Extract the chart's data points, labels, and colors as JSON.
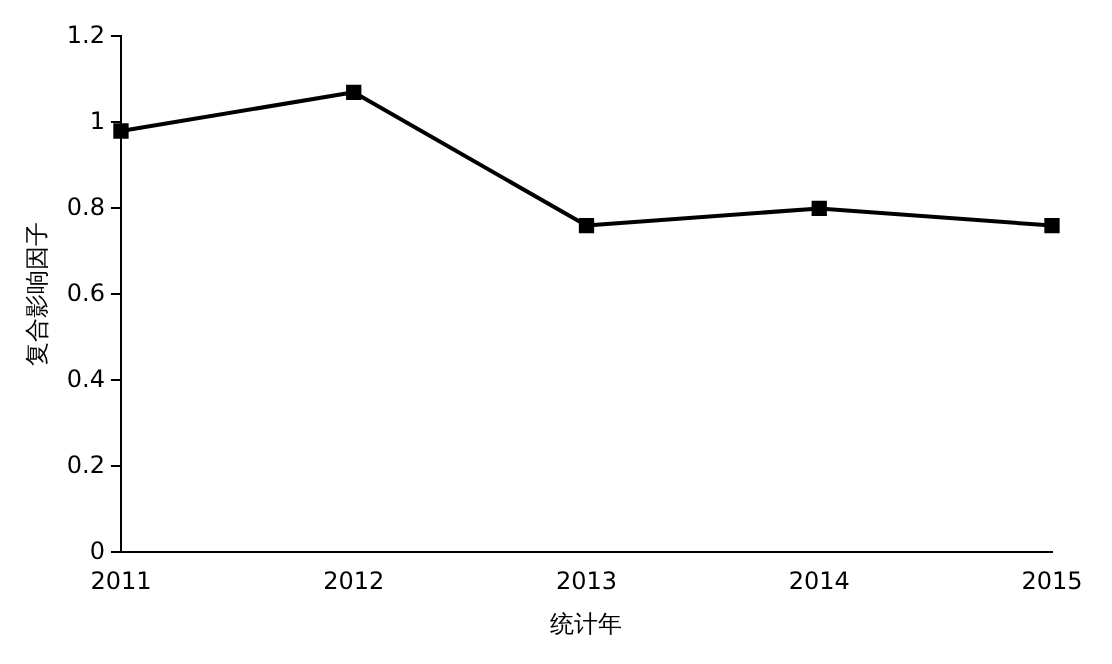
{
  "chart_data": {
    "type": "line",
    "xlabel": "统计年",
    "ylabel": "复合影响因子",
    "categories": [
      "2011",
      "2012",
      "2013",
      "2014",
      "2015"
    ],
    "series": [
      {
        "color": "#000000",
        "values": [
          0.98,
          1.07,
          0.76,
          0.8,
          0.76
        ]
      }
    ],
    "ylim": [
      0,
      1.2
    ],
    "yticks": [
      0,
      0.2,
      0.4,
      0.6,
      0.8,
      1,
      1.2
    ],
    "grid": false,
    "legend": false,
    "marker": "square",
    "line_style": "solid"
  }
}
